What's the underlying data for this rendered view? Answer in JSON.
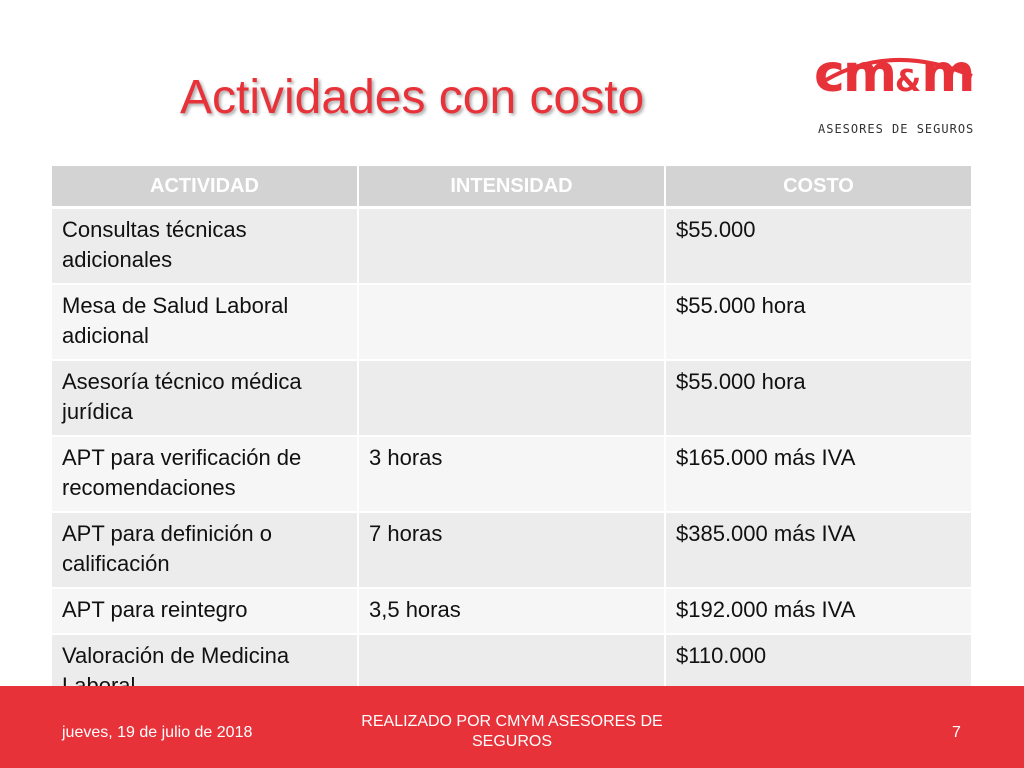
{
  "slide": {
    "title": "Actividades con costo",
    "logo": {
      "main": "cm",
      "amp": "&",
      "end": "m",
      "subtitle": "ASESORES DE SEGUROS",
      "color": "#e8323a"
    },
    "table": {
      "headers": [
        "ACTIVIDAD",
        "INTENSIDAD",
        "COSTO"
      ],
      "rows": [
        [
          "Consultas técnicas adicionales",
          "",
          "$55.000"
        ],
        [
          "Mesa de Salud Laboral adicional",
          "",
          "$55.000 hora"
        ],
        [
          "Asesoría técnico médica jurídica",
          "",
          "$55.000 hora"
        ],
        [
          "APT para verificación de recomendaciones",
          "3 horas",
          "$165.000 más IVA"
        ],
        [
          "APT para definición o calificación",
          "7 horas",
          "$385.000 más IVA"
        ],
        [
          "APT para reintegro",
          "3,5 horas",
          "$192.000 más IVA"
        ],
        [
          "Valoración de Medicina Laboral",
          "",
          "$110.000"
        ]
      ]
    },
    "footer": {
      "date": "jueves, 19 de julio de 2018",
      "center": "REALIZADO POR CMYM ASESORES DE SEGUROS",
      "page": "7"
    }
  }
}
